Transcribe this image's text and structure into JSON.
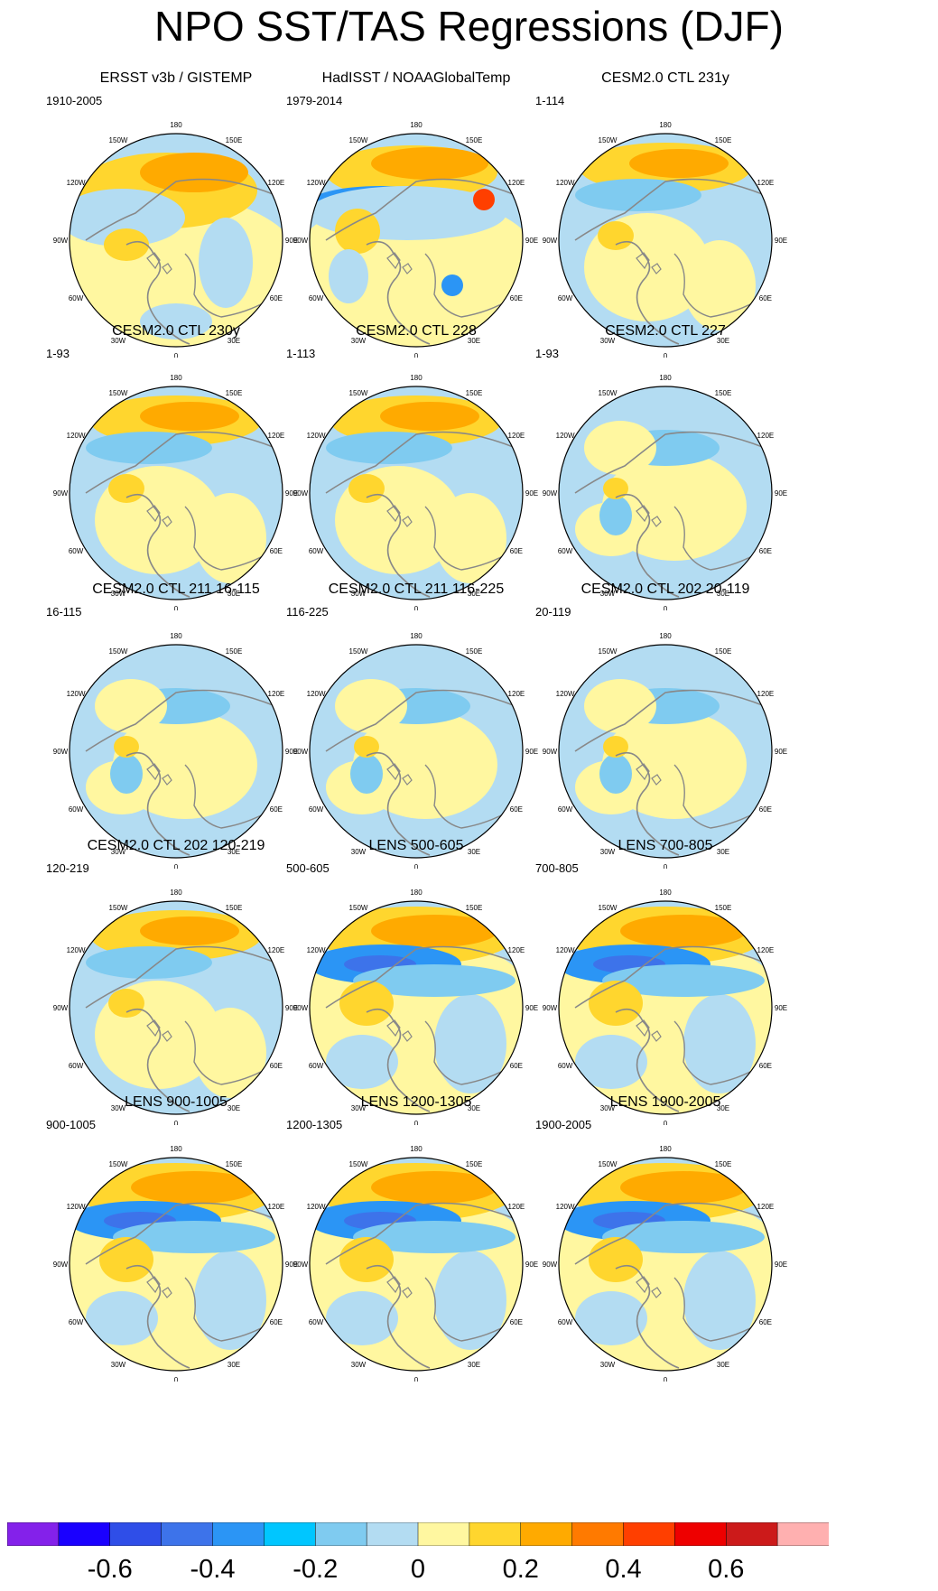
{
  "title": "NPO SST/TAS Regressions (DJF)",
  "lon_labels": [
    "180",
    "150E",
    "120E",
    "90E",
    "60E",
    "30E",
    "0",
    "30W",
    "60W",
    "90W",
    "120W",
    "150W"
  ],
  "panels": [
    {
      "title": "ERSST v3b / GISTEMP",
      "period": "1910-2005",
      "style": "obs1"
    },
    {
      "title": "HadISST / NOAAGlobalTemp",
      "period": "1979-2014",
      "style": "obs2"
    },
    {
      "title": "CESM2.0 CTL 231y",
      "period": "1-114",
      "style": "ctl"
    },
    {
      "title": "CESM2.0 CTL 230y",
      "period": "1-93",
      "style": "ctl"
    },
    {
      "title": "CESM2.0 CTL 228",
      "period": "1-113",
      "style": "ctl"
    },
    {
      "title": "CESM2.0 CTL 227",
      "period": "1-93",
      "style": "weak"
    },
    {
      "title": "CESM2.0 CTL 211 16-115",
      "period": "16-115",
      "style": "weak"
    },
    {
      "title": "CESM2.0 CTL 211 116-225",
      "period": "116-225",
      "style": "weak"
    },
    {
      "title": "CESM2.0 CTL 202 20-119",
      "period": "20-119",
      "style": "weak"
    },
    {
      "title": "CESM2.0 CTL 202 120-219",
      "period": "120-219",
      "style": "ctl"
    },
    {
      "title": "LENS 500-605",
      "period": "500-605",
      "style": "lens"
    },
    {
      "title": "LENS 700-805",
      "period": "700-805",
      "style": "lens"
    },
    {
      "title": "LENS 900-1005",
      "period": "900-1005",
      "style": "lens"
    },
    {
      "title": "LENS 1200-1305",
      "period": "1200-1305",
      "style": "lens"
    },
    {
      "title": "LENS 1900-2005",
      "period": "1900-2005",
      "style": "lens"
    }
  ],
  "colorbar": {
    "colors": [
      "#8421ea",
      "#1a00ff",
      "#2f4ee8",
      "#3d73ea",
      "#2b95f5",
      "#00c6ff",
      "#7fcbf0",
      "#b3dcf2",
      "#fff7a0",
      "#ffd62e",
      "#ffaa00",
      "#ff7a00",
      "#ff3f00",
      "#ee0000",
      "#cc1a1a",
      "#ffb0b0"
    ],
    "labels": [
      "-0.6",
      "-0.4",
      "-0.2",
      "0",
      "0.2",
      "0.4",
      "0.6"
    ]
  }
}
